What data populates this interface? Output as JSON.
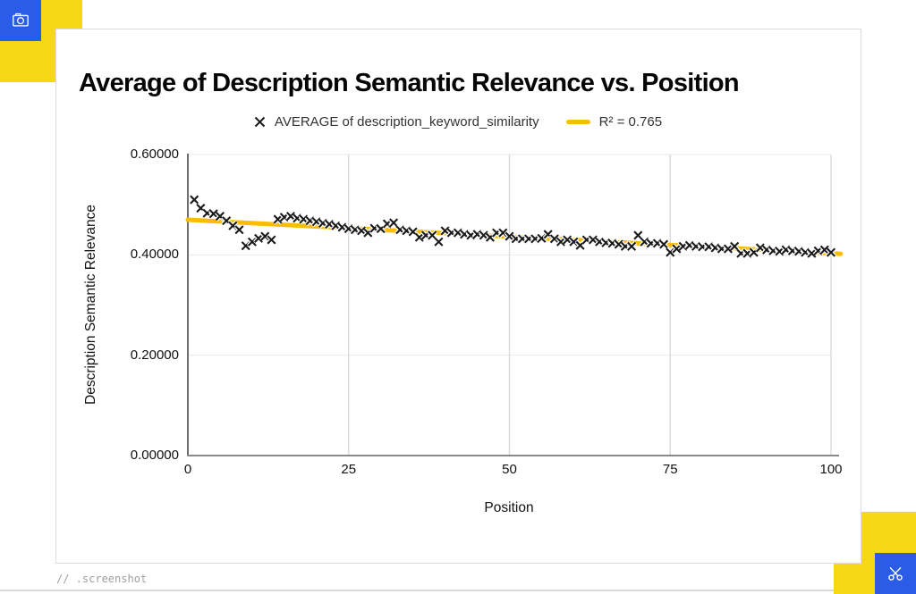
{
  "page": {
    "footer_note": "// .screenshot",
    "colors": {
      "accent_yellow": "#F7D814",
      "accent_blue": "#2A5CE8",
      "trend_yellow": "#FBBC04",
      "marker_color": "#1a1a1a",
      "card_border": "#dadce0"
    },
    "corner_icons": [
      "camera-icon",
      "scissors-icon"
    ]
  },
  "chart_data": {
    "type": "scatter",
    "title": "Average of Description Semantic Relevance vs. Position",
    "xlabel": "Position",
    "ylabel": "Description Semantic Relevance",
    "xlim": [
      0,
      100
    ],
    "ylim": [
      0,
      0.6
    ],
    "grid": {
      "vertical": true,
      "horizontal": true
    },
    "legend_position": "top",
    "x_ticks": {
      "values": [
        0,
        25,
        50,
        75,
        100
      ],
      "labels": [
        "0",
        "25",
        "50",
        "75",
        "100"
      ]
    },
    "y_ticks": {
      "values": [
        0,
        0.2,
        0.4,
        0.6
      ],
      "labels": [
        "0.00000",
        "0.20000",
        "0.40000",
        "0.60000"
      ]
    },
    "series": [
      {
        "name": "AVERAGE of description_keyword_similarity",
        "marker": "x-cross",
        "color": "#1a1a1a",
        "x": [
          1,
          2,
          3,
          4,
          5,
          6,
          7,
          8,
          9,
          10,
          11,
          12,
          13,
          14,
          15,
          16,
          17,
          18,
          19,
          20,
          21,
          22,
          23,
          24,
          25,
          26,
          27,
          28,
          29,
          30,
          31,
          32,
          33,
          34,
          35,
          36,
          37,
          38,
          39,
          40,
          41,
          42,
          43,
          44,
          45,
          46,
          47,
          48,
          49,
          50,
          51,
          52,
          53,
          54,
          55,
          56,
          57,
          58,
          59,
          60,
          61,
          62,
          63,
          64,
          65,
          66,
          67,
          68,
          69,
          70,
          71,
          72,
          73,
          74,
          75,
          76,
          77,
          78,
          79,
          80,
          81,
          82,
          83,
          84,
          85,
          86,
          87,
          88,
          89,
          90,
          91,
          92,
          93,
          94,
          95,
          96,
          97,
          98,
          99,
          100
        ],
        "y": [
          0.51,
          0.493,
          0.483,
          0.482,
          0.477,
          0.468,
          0.458,
          0.45,
          0.418,
          0.426,
          0.433,
          0.437,
          0.43,
          0.471,
          0.475,
          0.477,
          0.473,
          0.471,
          0.468,
          0.466,
          0.463,
          0.461,
          0.458,
          0.455,
          0.452,
          0.45,
          0.448,
          0.444,
          0.453,
          0.452,
          0.462,
          0.464,
          0.45,
          0.448,
          0.446,
          0.435,
          0.439,
          0.439,
          0.426,
          0.448,
          0.444,
          0.444,
          0.441,
          0.439,
          0.441,
          0.439,
          0.435,
          0.444,
          0.444,
          0.437,
          0.432,
          0.432,
          0.432,
          0.432,
          0.433,
          0.441,
          0.432,
          0.426,
          0.43,
          0.426,
          0.419,
          0.43,
          0.43,
          0.426,
          0.424,
          0.423,
          0.421,
          0.417,
          0.417,
          0.439,
          0.426,
          0.423,
          0.423,
          0.421,
          0.405,
          0.412,
          0.417,
          0.419,
          0.417,
          0.416,
          0.416,
          0.414,
          0.412,
          0.412,
          0.417,
          0.403,
          0.403,
          0.405,
          0.414,
          0.41,
          0.408,
          0.407,
          0.41,
          0.408,
          0.407,
          0.405,
          0.403,
          0.408,
          0.41,
          0.405
        ]
      }
    ],
    "trendline": {
      "label": "R² = 0.765",
      "r_squared": 0.765,
      "color": "#FBBC04",
      "x_start": 0,
      "y_start": 0.47,
      "x_end": 101.5,
      "y_end": 0.402
    }
  }
}
